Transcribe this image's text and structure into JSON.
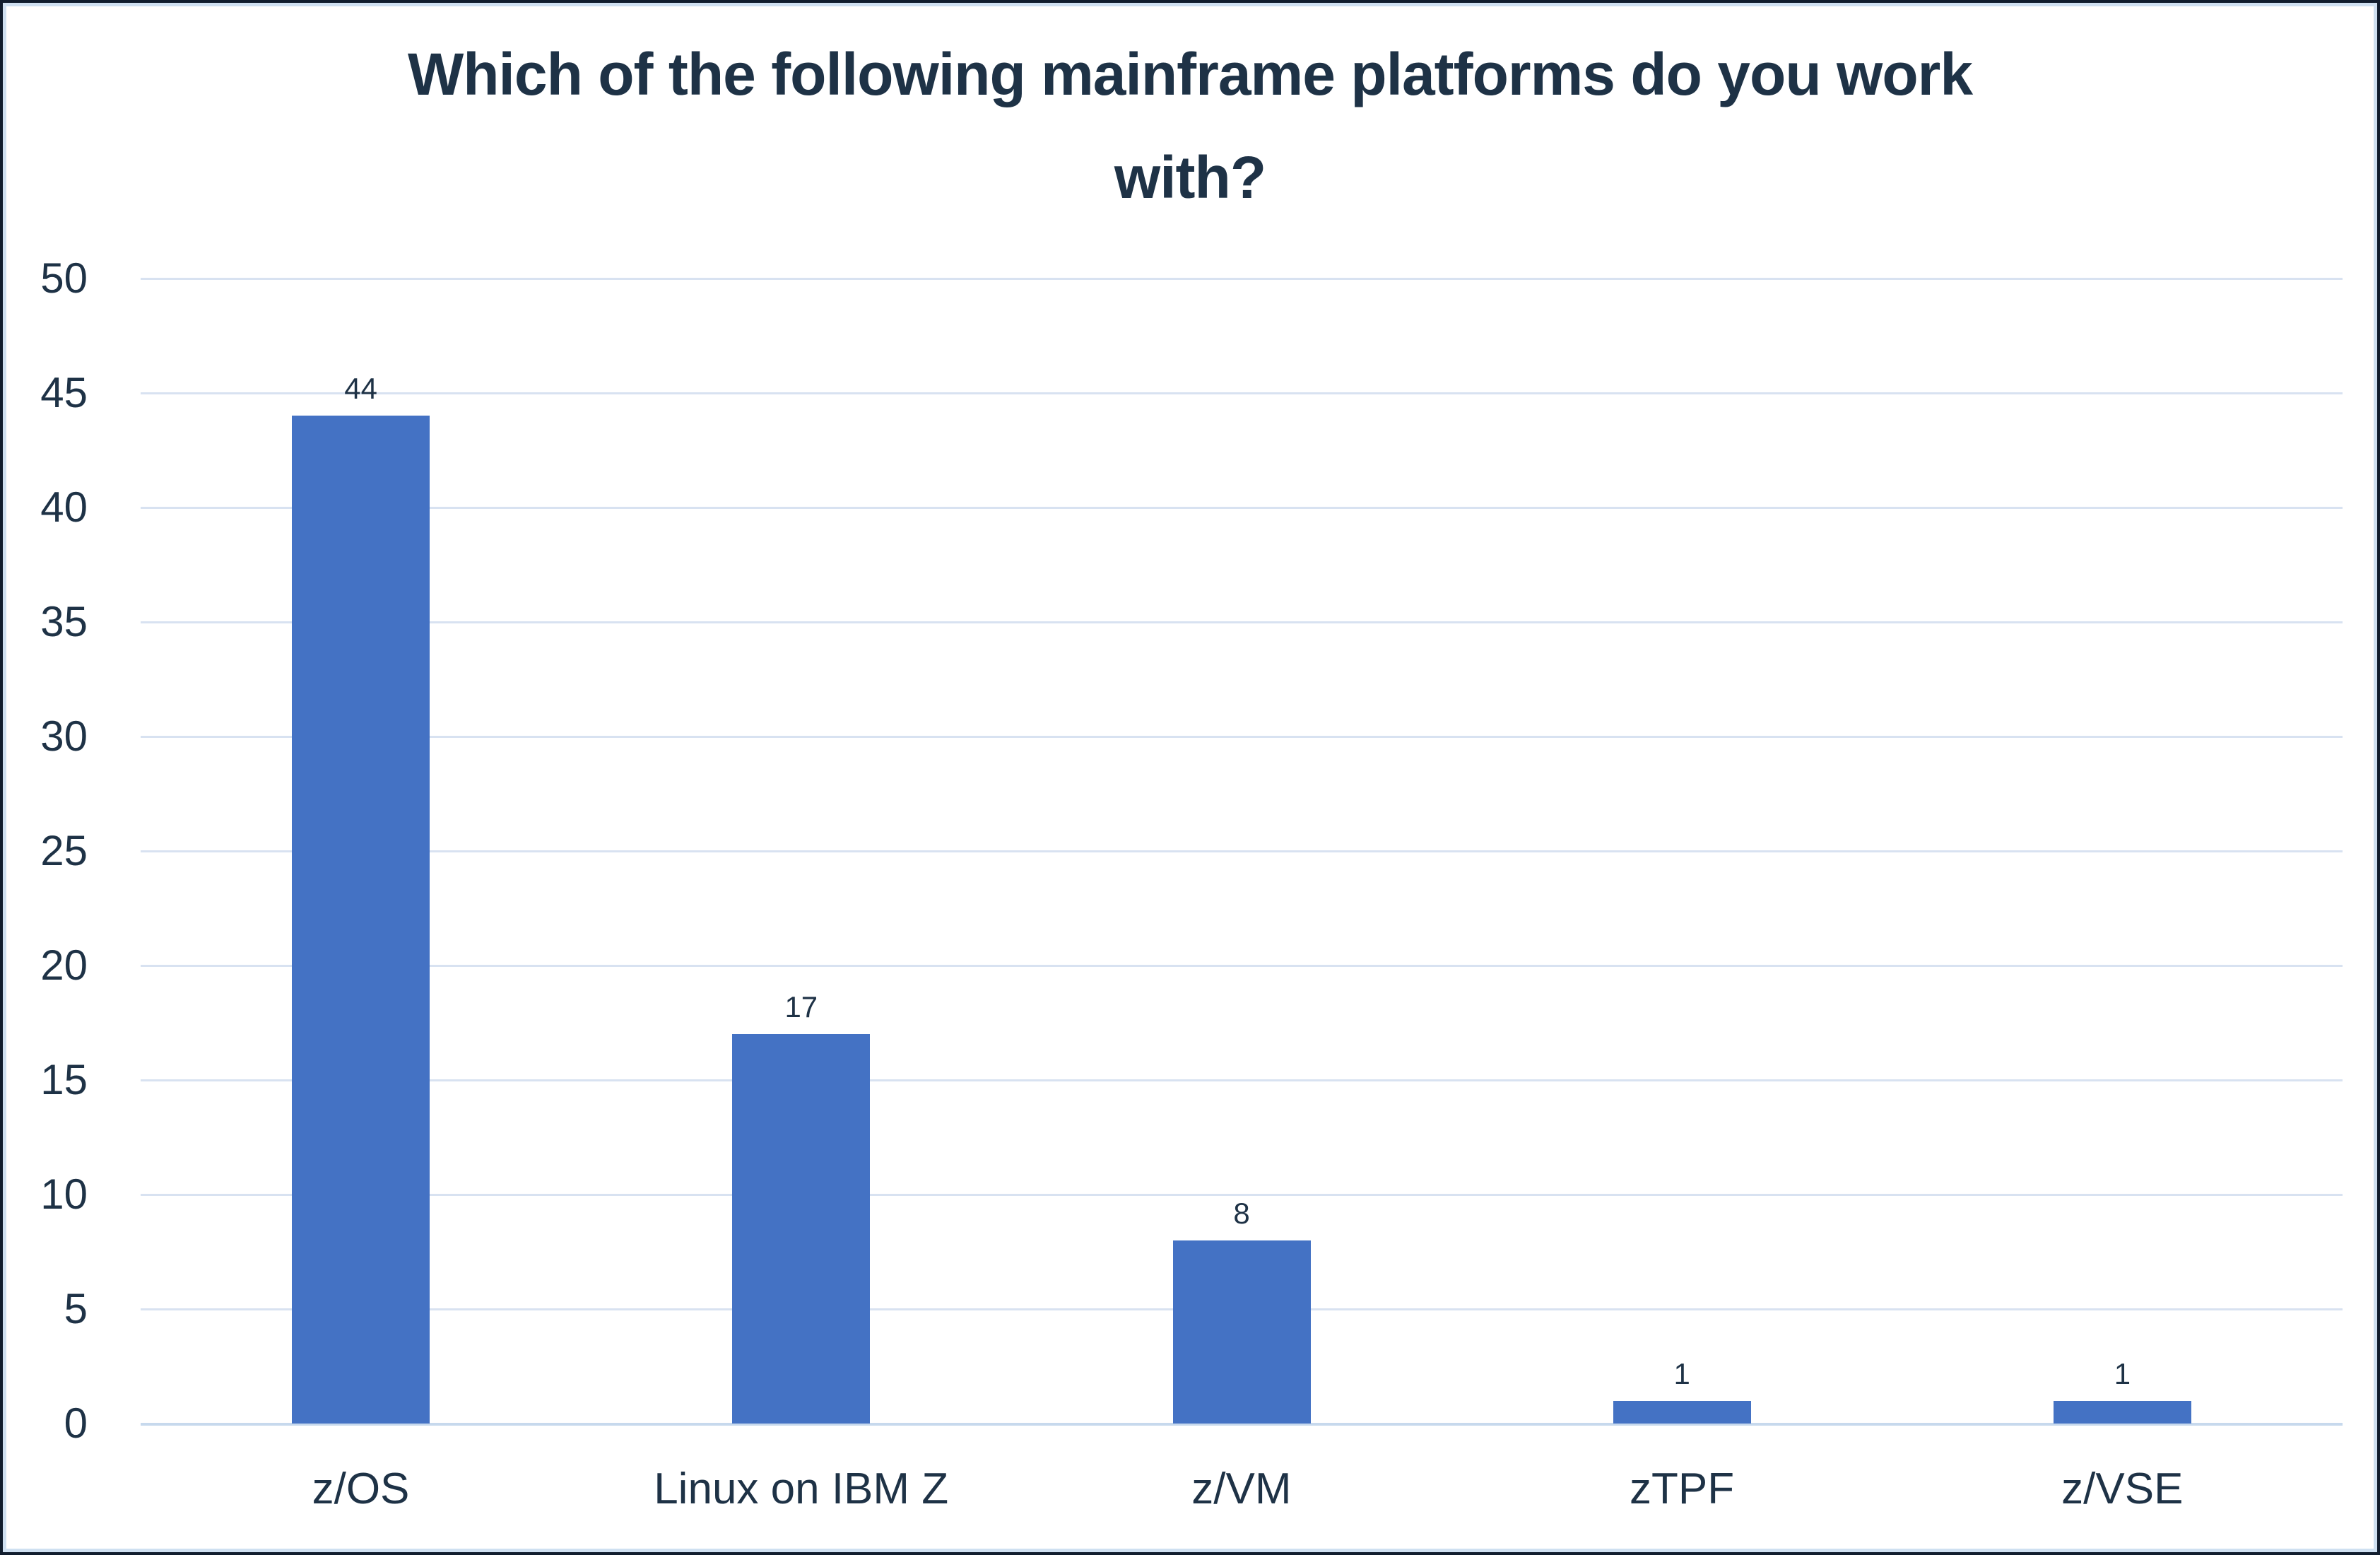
{
  "chart_data": {
    "type": "bar",
    "title": "Which of the following mainframe platforms do you work with?",
    "title_lines": [
      "Which of the following mainframe platforms do you work",
      "with?"
    ],
    "categories": [
      "z/OS",
      "Linux on IBM Z",
      "z/VM",
      "zTPF",
      "z/VSE"
    ],
    "values": [
      44,
      17,
      8,
      1,
      1
    ],
    "xlabel": "",
    "ylabel": "",
    "ylim": [
      0,
      50
    ],
    "ytick_step": 5,
    "ytick_labels": [
      "0",
      "5",
      "10",
      "15",
      "20",
      "25",
      "30",
      "35",
      "40",
      "45",
      "50"
    ],
    "grid": "horizontal",
    "legend_position": "none",
    "bar_color": "#4472C4",
    "gridline_color": "#D8E2F1",
    "axis_line_color": "#C7D9ED",
    "text_color": "#1E3246",
    "background_color": "#FFFFFF"
  }
}
